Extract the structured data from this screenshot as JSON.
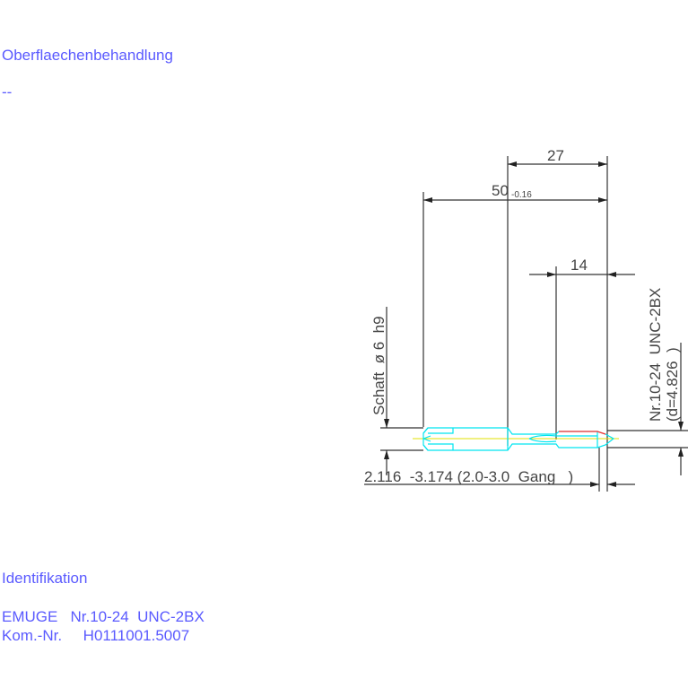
{
  "notes": {
    "surface_label": "Oberflaechenbehandlung",
    "surface_value": "--",
    "ident_label": "Identifikation",
    "ident_line1": "EMUGE   Nr.10-24  UNC-2BX",
    "ident_line2": "Kom.-Nr.     H0111001.5007"
  },
  "drawing": {
    "dim_total": "50",
    "dim_total_tol": "-0.16",
    "dim_27": "27",
    "dim_14": "14",
    "shank": "Schaft  ø 6  h9",
    "thread": "Nr.10-24  UNC-2BX",
    "thread_d": "(d=4.826  )",
    "chamfer": "2.116  -3.174 (2.0-3.0  Gang   )",
    "colors": {
      "outline": "#00e5f0",
      "thread_edge": "#ff3030",
      "axis": "#e0e000",
      "dimension": "#333333",
      "text": "#5a5aff"
    }
  }
}
